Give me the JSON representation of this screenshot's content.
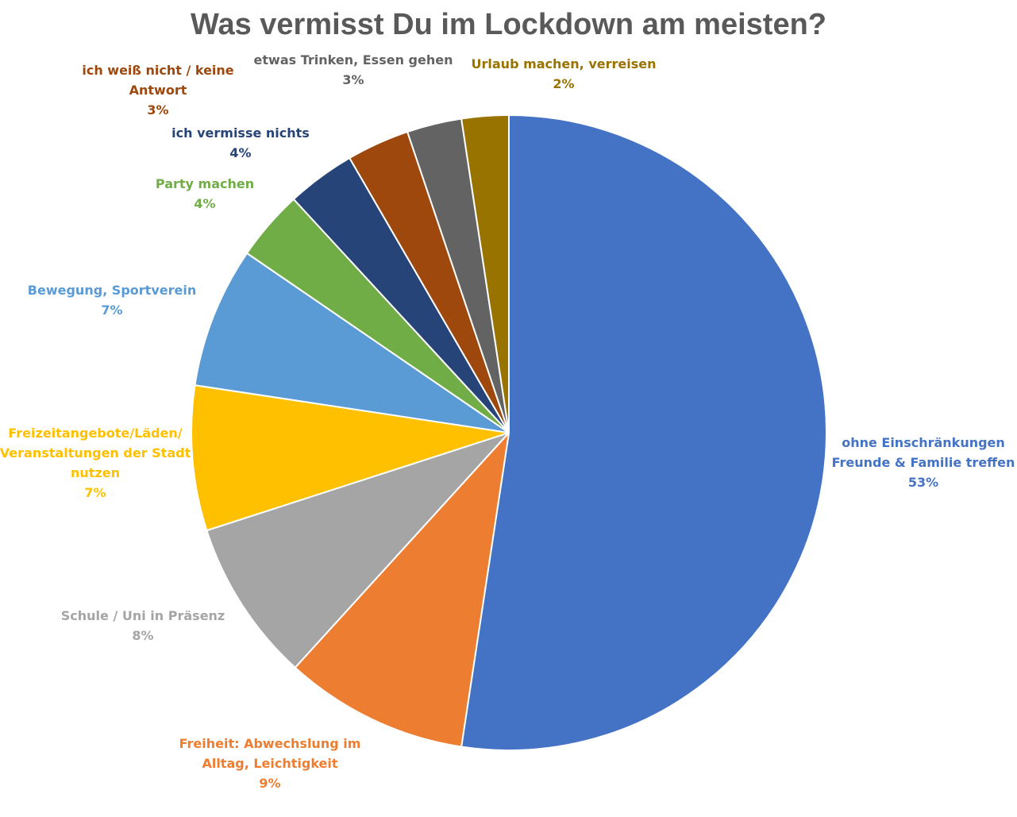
{
  "chart_data": {
    "type": "pie",
    "title": "Was vermisst Du im Lockdown am meisten?",
    "start_angle_deg": 0,
    "direction": "clockwise",
    "slices": [
      {
        "label_lines": [
          "ohne Einschränkungen",
          "Freunde & Familie treffen"
        ],
        "value_label": "53%",
        "value": 52.6,
        "color": "#4472C4"
      },
      {
        "label_lines": [
          "Freiheit: Abwechslung im",
          "Alltag, Leichtigkeit"
        ],
        "value_label": "9%",
        "value": 9.4,
        "color": "#ED7D31"
      },
      {
        "label_lines": [
          "Schule / Uni in Präsenz"
        ],
        "value_label": "8%",
        "value": 8.3,
        "color": "#A5A5A5"
      },
      {
        "label_lines": [
          "Freizeitangebote/Läden/",
          "Veranstaltungen der Stadt",
          "nutzen"
        ],
        "value_label": "7%",
        "value": 7.4,
        "color": "#FFC000"
      },
      {
        "label_lines": [
          "Bewegung, Sportverein"
        ],
        "value_label": "7%",
        "value": 7.2,
        "color": "#5B9BD5"
      },
      {
        "label_lines": [
          "Party machen"
        ],
        "value_label": "4%",
        "value": 3.6,
        "color": "#70AD47"
      },
      {
        "label_lines": [
          "ich vermisse nichts"
        ],
        "value_label": "4%",
        "value": 3.5,
        "color": "#264478"
      },
      {
        "label_lines": [
          "ich weiß nicht / keine",
          "Antwort"
        ],
        "value_label": "3%",
        "value": 3.2,
        "color": "#9E480E"
      },
      {
        "label_lines": [
          "etwas Trinken, Essen gehen"
        ],
        "value_label": "3%",
        "value": 2.8,
        "color": "#636363"
      },
      {
        "label_lines": [
          "Urlaub machen, verreisen"
        ],
        "value_label": "2%",
        "value": 2.4,
        "color": "#997300"
      }
    ],
    "legend": "none",
    "data_labels": "outside"
  }
}
